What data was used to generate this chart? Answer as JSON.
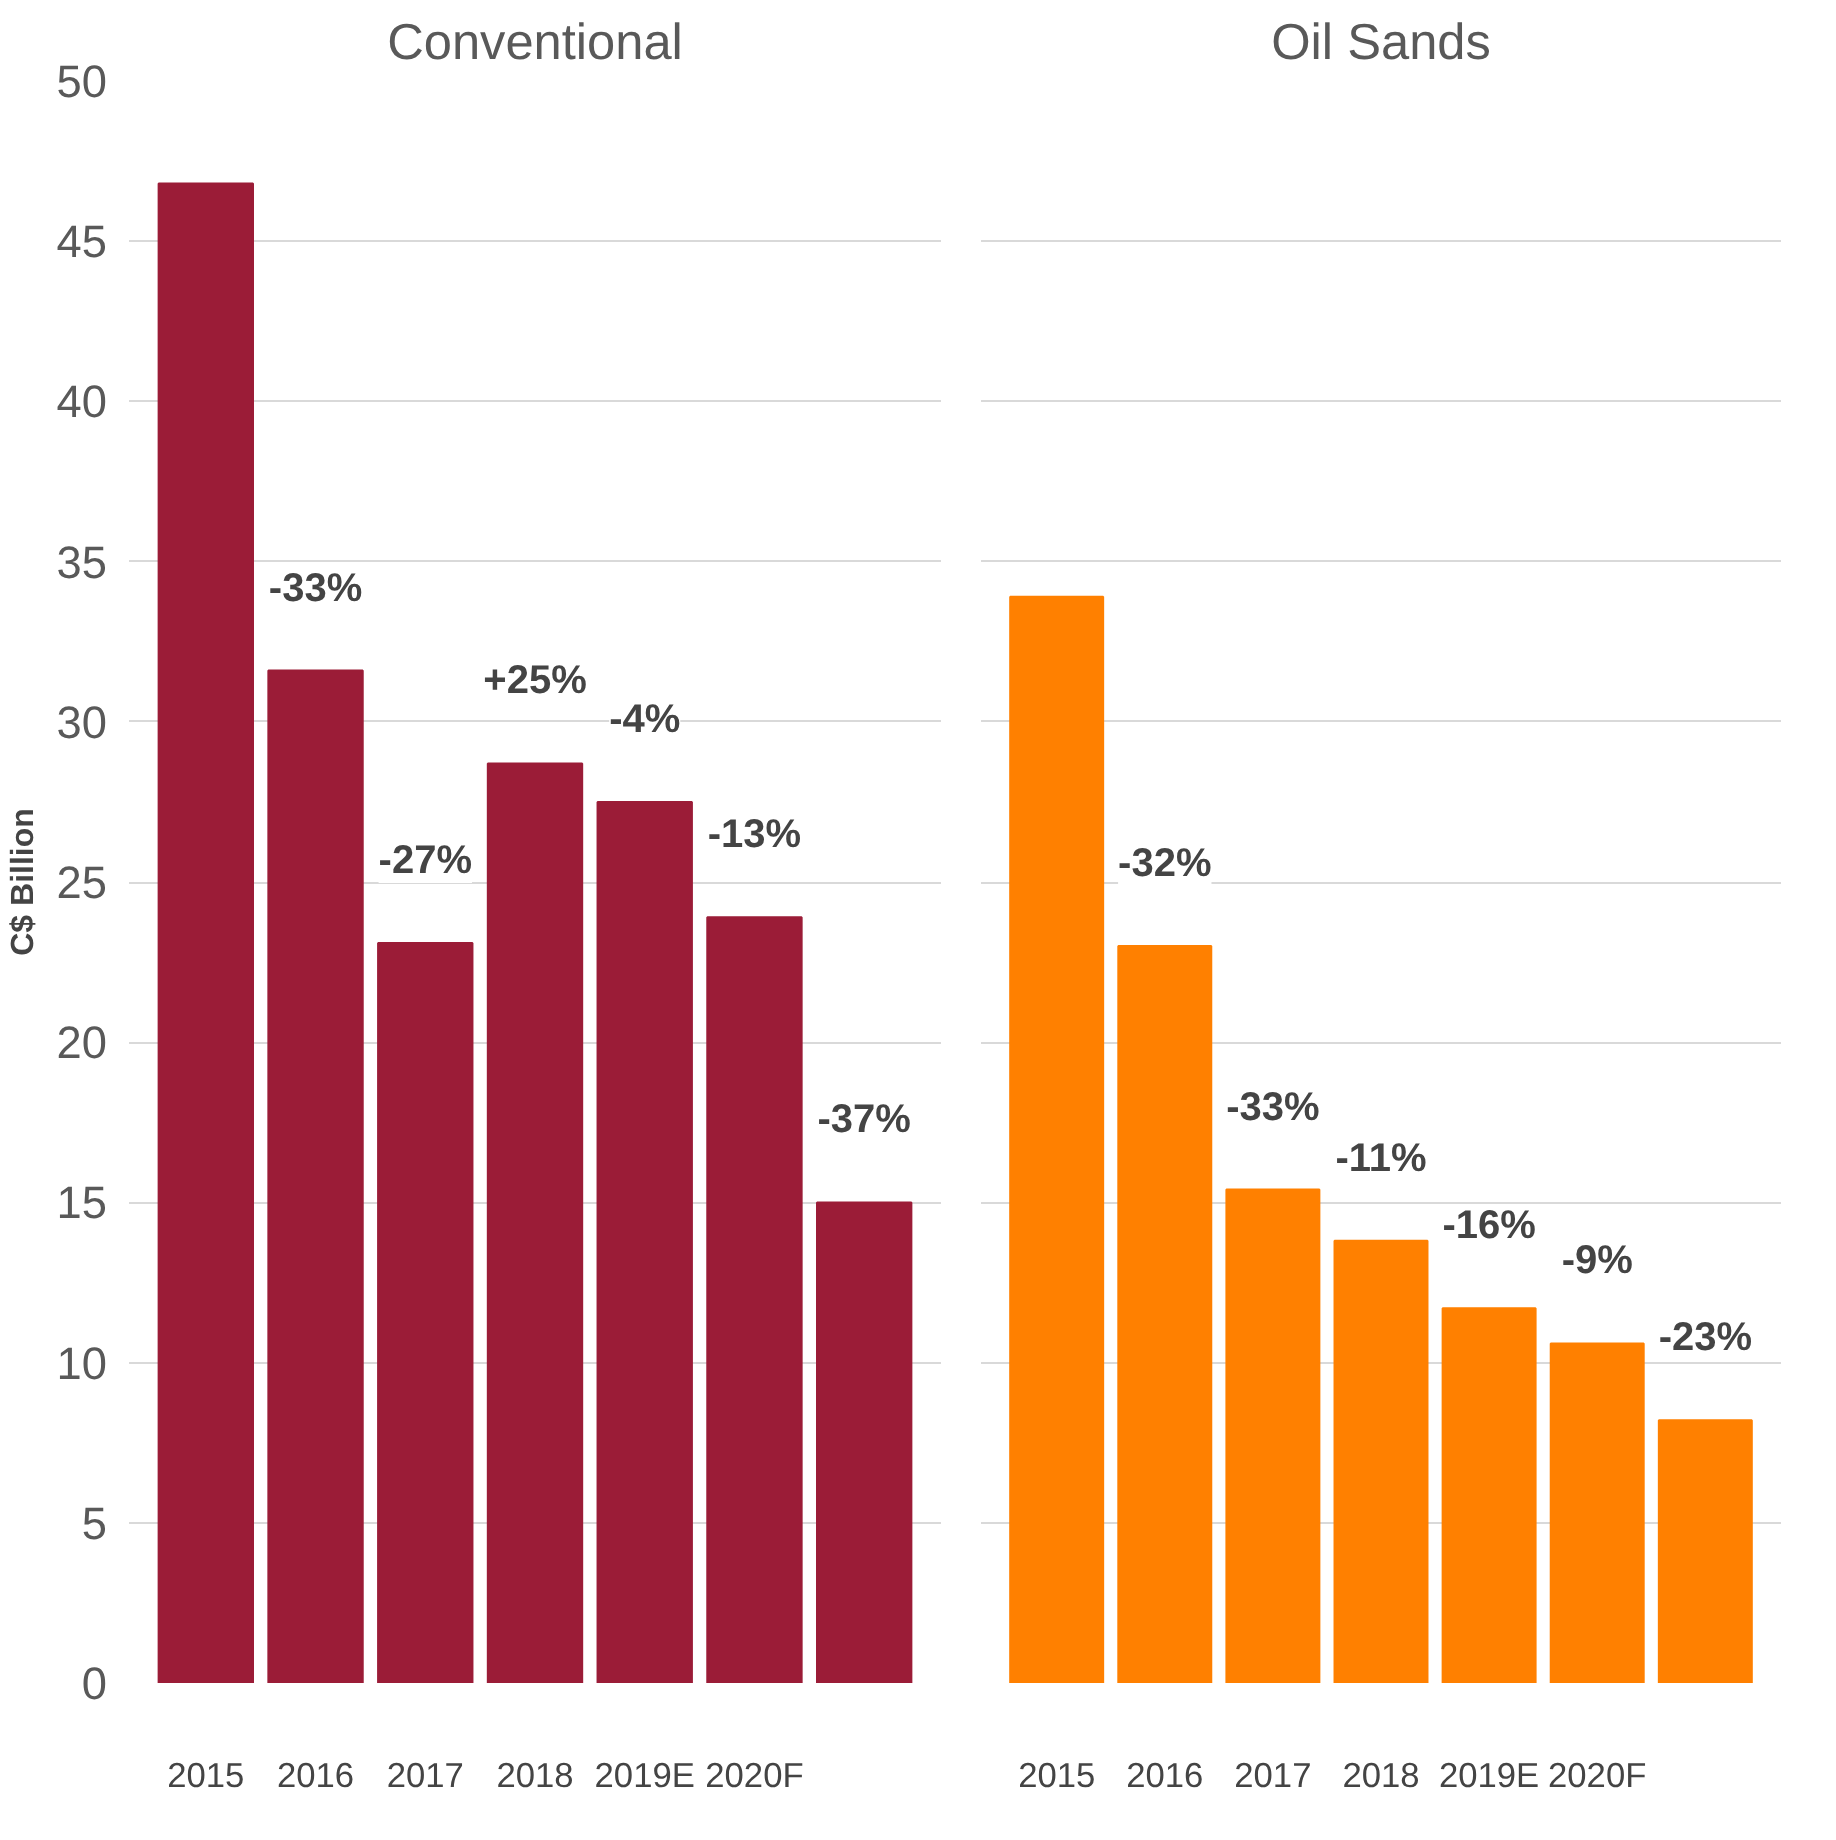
{
  "chart_data": [
    {
      "type": "bar",
      "title": "Conventional",
      "ylabel": "C$ Billion",
      "categories": [
        "2015",
        "2016",
        "2017",
        "2018",
        "2019E",
        "2020F",
        null
      ],
      "values": [
        46.8,
        31.6,
        23.1,
        28.7,
        27.5,
        23.9,
        15.0
      ],
      "color": "#9b1c37",
      "ylim": [
        0,
        50
      ],
      "yticks": [
        0,
        5,
        10,
        15,
        20,
        25,
        30,
        35,
        40,
        45,
        50
      ],
      "grid": "y",
      "annotations": [
        {
          "text": "-33%",
          "x": "2016",
          "y": 31.6
        },
        {
          "text": "-27%",
          "x": "2017",
          "y": 23.1
        },
        {
          "text": "+25%",
          "x": "2018",
          "y": 28.7
        },
        {
          "text": "-4%",
          "x": "2019E",
          "y": 27.5
        },
        {
          "text": "-13%",
          "x": "2020F",
          "y": 23.9
        },
        {
          "text": "-37%",
          "y": 15.0
        }
      ]
    },
    {
      "type": "bar",
      "title": "Oil Sands",
      "categories": [
        "2015",
        "2016",
        "2017",
        "2018",
        "2019E",
        "2020F",
        null
      ],
      "values": [
        33.9,
        23.0,
        15.4,
        13.8,
        11.7,
        10.6,
        8.2
      ],
      "color": "#ff8000",
      "ylim": [
        0,
        50
      ],
      "yticks": [
        0,
        5,
        10,
        15,
        20,
        25,
        30,
        35,
        40,
        45,
        50
      ],
      "grid": "y",
      "tick_labels": "x",
      "annotations": [
        {
          "text": "-32%",
          "x": "2016",
          "y": 23.0
        },
        {
          "text": "-33%",
          "x": "2017",
          "y": 15.4
        },
        {
          "text": "-11%",
          "x": "2018",
          "y": 13.8
        },
        {
          "text": "-16%",
          "x": "2019E",
          "y": 11.7
        },
        {
          "text": "-9%",
          "x": "2020F",
          "y": 10.6
        },
        {
          "text": "-23%",
          "y": 8.2
        }
      ]
    }
  ]
}
